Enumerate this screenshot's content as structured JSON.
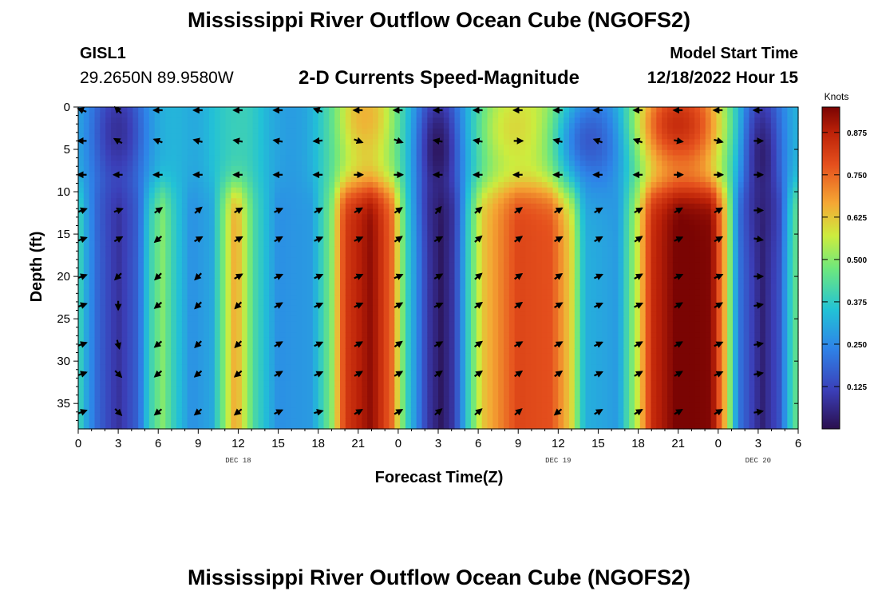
{
  "header": {
    "title": "Mississippi River Outflow Ocean Cube (NGOFS2)",
    "station_id": "GISL1",
    "station_coords": "29.2650N  89.9580W",
    "subtitle": "2-D Currents Speed-Magnitude",
    "start_label": "Model Start Time",
    "start_value": "12/18/2022 Hour 15"
  },
  "footer": {
    "title": "Mississippi River Outflow Ocean Cube (NGOFS2)"
  },
  "chart_data": {
    "type": "heatmap",
    "title": "2-D Currents Speed-Magnitude",
    "xlabel": "Forecast Time(Z)",
    "ylabel": "Depth (ft)",
    "x_hours_range": [
      0,
      54
    ],
    "y_range_ft": [
      0,
      38
    ],
    "x_tick_labels": [
      "0",
      "3",
      "6",
      "9",
      "12",
      "15",
      "18",
      "21",
      "0",
      "3",
      "6",
      "9",
      "12",
      "15",
      "18",
      "21",
      "0",
      "3",
      "6"
    ],
    "y_ticks": [
      0,
      5,
      10,
      15,
      20,
      25,
      30,
      35
    ],
    "day_labels": [
      {
        "label": "DEC 18",
        "hour": 12
      },
      {
        "label": "DEC 19",
        "hour": 36
      },
      {
        "label": "DEC 20",
        "hour": 51
      }
    ],
    "colorbar": {
      "unit": "Knots",
      "min": 0,
      "max": 0.95,
      "ticks": [
        0.125,
        0.25,
        0.375,
        0.5,
        0.625,
        0.75,
        0.875
      ]
    },
    "surface_features": [
      {
        "hour": 3,
        "depth": 3,
        "value": 0.08,
        "sx": 1.3,
        "sd": 5
      },
      {
        "hour": 21.5,
        "depth": 1,
        "value": 0.65,
        "sx": 1.1,
        "sd": 3
      },
      {
        "hour": 27,
        "depth": 5,
        "value": 0.02,
        "sx": 1.0,
        "sd": 5
      },
      {
        "hour": 33,
        "depth": 2.5,
        "value": 0.6,
        "sx": 1.6,
        "sd": 3
      },
      {
        "hour": 38.5,
        "depth": 4,
        "value": 0.16,
        "sx": 1.8,
        "sd": 4
      },
      {
        "hour": 45,
        "depth": 2,
        "value": 0.85,
        "sx": 2.0,
        "sd": 3.5
      },
      {
        "hour": 51.3,
        "depth": 6,
        "value": 0.04,
        "sx": 0.9,
        "sd": 6
      }
    ],
    "deep_profile": [
      {
        "hour": 0,
        "value": 0.42
      },
      {
        "hour": 0.6,
        "value": 0.3
      },
      {
        "hour": 1.5,
        "value": 0.18
      },
      {
        "hour": 3,
        "value": 0.08
      },
      {
        "hour": 4.5,
        "value": 0.18
      },
      {
        "hour": 5.3,
        "value": 0.38
      },
      {
        "hour": 6.3,
        "value": 0.5
      },
      {
        "hour": 7.2,
        "value": 0.38
      },
      {
        "hour": 8.5,
        "value": 0.26
      },
      {
        "hour": 10,
        "value": 0.3
      },
      {
        "hour": 11.8,
        "value": 0.68
      },
      {
        "hour": 13.2,
        "value": 0.42
      },
      {
        "hour": 15,
        "value": 0.26
      },
      {
        "hour": 17.5,
        "value": 0.28
      },
      {
        "hour": 19,
        "value": 0.5
      },
      {
        "hour": 20,
        "value": 0.82
      },
      {
        "hour": 22,
        "value": 0.93
      },
      {
        "hour": 23.5,
        "value": 0.75
      },
      {
        "hour": 24.6,
        "value": 0.4
      },
      {
        "hour": 26.2,
        "value": 0.1
      },
      {
        "hour": 27.2,
        "value": 0.02
      },
      {
        "hour": 28.2,
        "value": 0.1
      },
      {
        "hour": 29.3,
        "value": 0.4
      },
      {
        "hour": 30.3,
        "value": 0.62
      },
      {
        "hour": 33,
        "value": 0.8
      },
      {
        "hour": 35.5,
        "value": 0.78
      },
      {
        "hour": 37,
        "value": 0.6
      },
      {
        "hour": 38,
        "value": 0.32
      },
      {
        "hour": 40.5,
        "value": 0.28
      },
      {
        "hour": 42,
        "value": 0.58
      },
      {
        "hour": 43,
        "value": 0.85
      },
      {
        "hour": 45,
        "value": 0.96
      },
      {
        "hour": 47.5,
        "value": 0.94
      },
      {
        "hour": 48.6,
        "value": 0.62
      },
      {
        "hour": 49.5,
        "value": 0.22
      },
      {
        "hour": 51.3,
        "value": 0.04
      },
      {
        "hour": 52.6,
        "value": 0.15
      },
      {
        "hour": 53.3,
        "value": 0.35
      },
      {
        "hour": 54,
        "value": 0.48
      }
    ],
    "vector_hours": [
      0,
      3,
      6,
      9,
      12,
      15,
      18,
      21,
      24,
      27,
      30,
      33,
      36,
      39,
      42,
      45,
      48,
      51
    ],
    "vector_depths": [
      0,
      4,
      8,
      12.2,
      15.6,
      20,
      23.4,
      28,
      31.5,
      36
    ],
    "vector_directions": [
      [
        200,
        225,
        180,
        180,
        180,
        180,
        200,
        180,
        180,
        180,
        180,
        180,
        180,
        180,
        180,
        180,
        180,
        180
      ],
      [
        180,
        210,
        200,
        195,
        190,
        190,
        175,
        20,
        20,
        190,
        190,
        0,
        195,
        200,
        200,
        10,
        15,
        0
      ],
      [
        180,
        180,
        180,
        180,
        180,
        180,
        180,
        0,
        0,
        180,
        180,
        180,
        180,
        180,
        180,
        0,
        0,
        0
      ],
      [
        -20,
        -20,
        -35,
        -40,
        -30,
        -25,
        -30,
        -30,
        -35,
        -50,
        -40,
        -35,
        -30,
        -30,
        -30,
        -30,
        -30,
        0
      ],
      [
        -20,
        -30,
        140,
        -30,
        -30,
        -30,
        -25,
        -25,
        -35,
        -30,
        -40,
        -35,
        -30,
        -30,
        -35,
        -25,
        -30,
        10
      ],
      [
        -20,
        135,
        135,
        135,
        -30,
        -25,
        -25,
        -25,
        -25,
        -30,
        -40,
        -35,
        -35,
        -25,
        -30,
        -25,
        -25,
        0
      ],
      [
        -20,
        90,
        140,
        135,
        135,
        -30,
        -25,
        -25,
        -30,
        -25,
        -35,
        -35,
        -30,
        -25,
        -25,
        -30,
        -30,
        -10
      ],
      [
        -20,
        75,
        140,
        135,
        135,
        -30,
        -25,
        -30,
        -35,
        -30,
        -35,
        -30,
        -30,
        -25,
        -30,
        -30,
        -25,
        -10
      ],
      [
        -20,
        45,
        140,
        140,
        140,
        -30,
        -25,
        -30,
        -30,
        -35,
        -35,
        -35,
        -35,
        -25,
        -30,
        -30,
        -25,
        -10
      ],
      [
        -20,
        45,
        140,
        140,
        140,
        -25,
        -15,
        -30,
        -30,
        -40,
        -40,
        -40,
        140,
        -30,
        -30,
        -30,
        -30,
        -10
      ]
    ]
  }
}
